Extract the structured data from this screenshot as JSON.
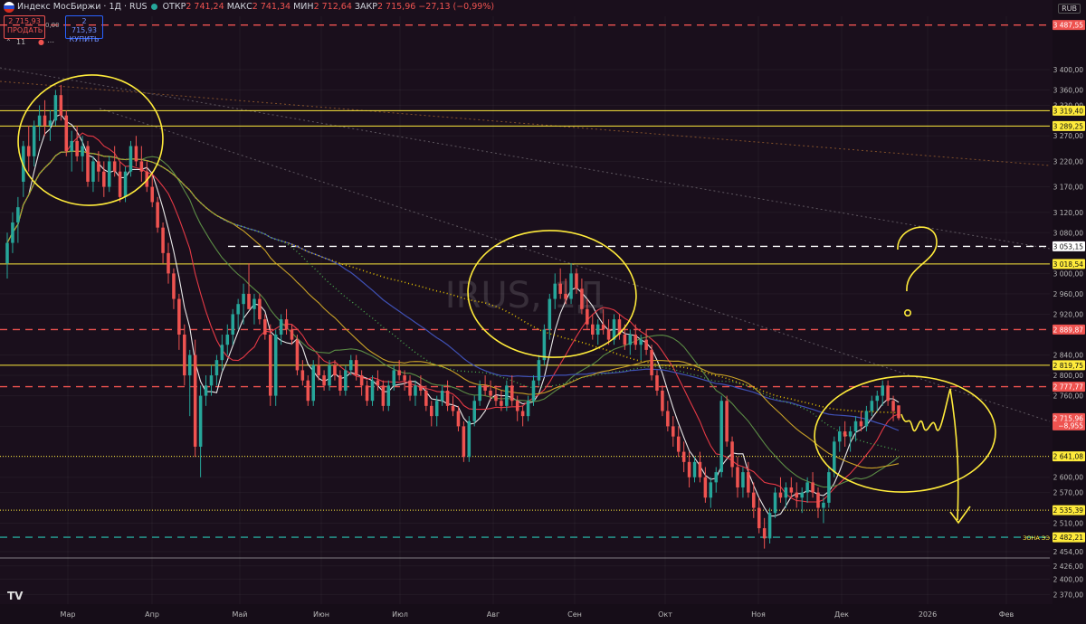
{
  "header": {
    "title": "Индекс МосБиржи · 1Д · RUS",
    "open_label": "ОТКР",
    "open": "2 741,24",
    "high_label": "МАКС",
    "high": "2 741,34",
    "low_label": "МИН",
    "low": "2 712,64",
    "close_label": "ЗАКР",
    "close": "2 715,96",
    "change": "−27,13 (−0,99%)",
    "currency": "RUB"
  },
  "trade": {
    "sell_price": "2 715,93",
    "sell_label": "ПРОДАТЬ",
    "spread": "0,00",
    "buy_price": "2 715,93",
    "buy_label": "КУПИТЬ",
    "indicators_count": "11"
  },
  "watermark": "IRUS, 1Д",
  "colors": {
    "bull": "#26a69a",
    "bear": "#ef5350",
    "drawing": "#ffeb3b",
    "ma_white": "#e8e8e8",
    "ma_red": "#e53945",
    "ma_green": "#5b8c45",
    "ma_blue": "#3f51b5",
    "ma_yellow": "#c9a227",
    "ma_yellow_dotted": "#e5c100",
    "ma_green_dotted": "#4caf50"
  },
  "chart_data": {
    "type": "candlestick",
    "title": "Индекс МосБиржи · 1Д · RUS",
    "yaxis": {
      "ticks": [
        3400,
        3360,
        3330,
        3270,
        3220,
        3170,
        3120,
        3080,
        3000,
        2960,
        2920,
        2840,
        2800,
        2760,
        2700,
        2640,
        2600,
        2570,
        2510,
        2454,
        2426,
        2400,
        2370
      ],
      "tick_labels": [
        "3 400,00",
        "3 360,00",
        "3 330,00",
        "3 270,00",
        "3 220,00",
        "3 170,00",
        "3 120,00",
        "3 080,00",
        "3 000,00",
        "2 960,00",
        "2 920,00",
        "2 840,00",
        "2 800,00",
        "2 760,00",
        "2 700,00",
        "2 640,00",
        "2 600,00",
        "2 570,00",
        "2 510,00",
        "2 454,00",
        "2 426,00",
        "2 400,00",
        "2 370,00"
      ]
    },
    "xaxis_labels": [
      "Мар",
      "Апр",
      "Май",
      "Июн",
      "Июл",
      "Авг",
      "Сен",
      "Окт",
      "Ноя",
      "Дек",
      "2026",
      "Фев"
    ],
    "price_levels": [
      {
        "value": 3487.55,
        "label": "3 487,55",
        "style": "dash",
        "color": "#ef5350"
      },
      {
        "value": 3319.4,
        "label": "3 319,40",
        "style": "solid",
        "color": "#ffeb3b"
      },
      {
        "value": 3289.25,
        "label": "3 289,25",
        "style": "solid",
        "color": "#ffeb3b"
      },
      {
        "value": 3053.15,
        "label": "3 053,15",
        "style": "dash",
        "color": "#ffffff"
      },
      {
        "value": 3018.54,
        "label": "3 018,54",
        "style": "solid",
        "color": "#ffeb3b"
      },
      {
        "value": 2889.87,
        "label": "2 889,87",
        "style": "dash",
        "color": "#ef5350"
      },
      {
        "value": 2819.75,
        "label": "2 819,75",
        "style": "solid",
        "color": "#ffeb3b"
      },
      {
        "value": 2777.77,
        "label": "2 777,77",
        "style": "dash",
        "color": "#ef5350"
      },
      {
        "value": 2641.08,
        "label": "2 641,08",
        "style": "dot",
        "color": "#ffeb3b"
      },
      {
        "value": 2535.39,
        "label": "2 535,39",
        "style": "dot",
        "color": "#ffeb3b"
      },
      {
        "value": 2482.21,
        "label": "2 482,21",
        "style": "dash",
        "color": "#26a69a"
      }
    ],
    "last_price": {
      "value": 2715.96,
      "label": "2 715,96",
      "change_label": "−8,955"
    },
    "zone_label": "ЗОНА ЭЭ",
    "candles": [
      [
        3020,
        3080,
        2990,
        3060
      ],
      [
        3060,
        3120,
        3040,
        3100
      ],
      [
        3100,
        3150,
        3060,
        3130
      ],
      [
        3180,
        3260,
        3150,
        3250
      ],
      [
        3250,
        3290,
        3200,
        3230
      ],
      [
        3230,
        3300,
        3210,
        3290
      ],
      [
        3290,
        3330,
        3260,
        3310
      ],
      [
        3310,
        3340,
        3270,
        3290
      ],
      [
        3290,
        3320,
        3260,
        3300
      ],
      [
        3300,
        3360,
        3290,
        3350
      ],
      [
        3350,
        3370,
        3300,
        3310
      ],
      [
        3310,
        3320,
        3230,
        3240
      ],
      [
        3240,
        3280,
        3200,
        3260
      ],
      [
        3260,
        3290,
        3220,
        3230
      ],
      [
        3230,
        3270,
        3200,
        3250
      ],
      [
        3250,
        3260,
        3170,
        3180
      ],
      [
        3180,
        3230,
        3160,
        3220
      ],
      [
        3220,
        3240,
        3180,
        3200
      ],
      [
        3200,
        3220,
        3150,
        3170
      ],
      [
        3170,
        3230,
        3160,
        3220
      ],
      [
        3220,
        3250,
        3190,
        3200
      ],
      [
        3200,
        3220,
        3140,
        3150
      ],
      [
        3150,
        3210,
        3140,
        3200
      ],
      [
        3200,
        3260,
        3190,
        3250
      ],
      [
        3250,
        3270,
        3210,
        3220
      ],
      [
        3220,
        3250,
        3180,
        3200
      ],
      [
        3200,
        3220,
        3160,
        3170
      ],
      [
        3170,
        3200,
        3130,
        3140
      ],
      [
        3140,
        3150,
        3080,
        3090
      ],
      [
        3090,
        3100,
        3020,
        3040
      ],
      [
        3040,
        3060,
        2980,
        3000
      ],
      [
        3000,
        3010,
        2930,
        2950
      ],
      [
        2950,
        2960,
        2850,
        2880
      ],
      [
        2880,
        2900,
        2780,
        2800
      ],
      [
        2800,
        2850,
        2720,
        2840
      ],
      [
        2840,
        2870,
        2640,
        2660
      ],
      [
        2660,
        2780,
        2600,
        2760
      ],
      [
        2760,
        2800,
        2740,
        2780
      ],
      [
        2780,
        2820,
        2760,
        2800
      ],
      [
        2800,
        2840,
        2780,
        2830
      ],
      [
        2830,
        2880,
        2810,
        2860
      ],
      [
        2860,
        2900,
        2840,
        2880
      ],
      [
        2880,
        2930,
        2860,
        2920
      ],
      [
        2920,
        2950,
        2890,
        2940
      ],
      [
        2940,
        2980,
        2900,
        2960
      ],
      [
        2960,
        3020,
        2930,
        2930
      ],
      [
        2930,
        2960,
        2900,
        2950
      ],
      [
        2950,
        2960,
        2900,
        2910
      ],
      [
        2910,
        2920,
        2870,
        2880
      ],
      [
        2880,
        2900,
        2740,
        2760
      ],
      [
        2760,
        2890,
        2740,
        2880
      ],
      [
        2880,
        2920,
        2860,
        2910
      ],
      [
        2910,
        2930,
        2880,
        2890
      ],
      [
        2890,
        2900,
        2860,
        2870
      ],
      [
        2870,
        2880,
        2800,
        2810
      ],
      [
        2810,
        2830,
        2780,
        2790
      ],
      [
        2790,
        2800,
        2740,
        2750
      ],
      [
        2750,
        2830,
        2740,
        2820
      ],
      [
        2820,
        2840,
        2790,
        2800
      ],
      [
        2800,
        2810,
        2770,
        2780
      ],
      [
        2780,
        2830,
        2770,
        2820
      ],
      [
        2820,
        2830,
        2790,
        2800
      ],
      [
        2800,
        2810,
        2760,
        2770
      ],
      [
        2770,
        2820,
        2760,
        2810
      ],
      [
        2810,
        2840,
        2800,
        2830
      ],
      [
        2830,
        2840,
        2790,
        2800
      ],
      [
        2800,
        2810,
        2760,
        2780
      ],
      [
        2780,
        2790,
        2740,
        2750
      ],
      [
        2750,
        2800,
        2740,
        2790
      ],
      [
        2790,
        2810,
        2770,
        2780
      ],
      [
        2780,
        2790,
        2730,
        2740
      ],
      [
        2740,
        2790,
        2730,
        2780
      ],
      [
        2780,
        2820,
        2770,
        2810
      ],
      [
        2810,
        2830,
        2790,
        2800
      ],
      [
        2800,
        2810,
        2770,
        2790
      ],
      [
        2790,
        2800,
        2750,
        2760
      ],
      [
        2760,
        2790,
        2740,
        2780
      ],
      [
        2780,
        2800,
        2760,
        2770
      ],
      [
        2770,
        2780,
        2730,
        2740
      ],
      [
        2740,
        2750,
        2700,
        2720
      ],
      [
        2720,
        2760,
        2700,
        2750
      ],
      [
        2750,
        2780,
        2740,
        2770
      ],
      [
        2770,
        2790,
        2730,
        2740
      ],
      [
        2740,
        2760,
        2720,
        2730
      ],
      [
        2730,
        2740,
        2690,
        2700
      ],
      [
        2700,
        2710,
        2630,
        2640
      ],
      [
        2640,
        2720,
        2630,
        2710
      ],
      [
        2710,
        2760,
        2700,
        2750
      ],
      [
        2750,
        2790,
        2740,
        2780
      ],
      [
        2780,
        2800,
        2760,
        2770
      ],
      [
        2770,
        2790,
        2750,
        2760
      ],
      [
        2760,
        2780,
        2740,
        2750
      ],
      [
        2750,
        2770,
        2730,
        2740
      ],
      [
        2740,
        2790,
        2730,
        2780
      ],
      [
        2780,
        2800,
        2740,
        2750
      ],
      [
        2750,
        2760,
        2710,
        2730
      ],
      [
        2730,
        2740,
        2700,
        2720
      ],
      [
        2720,
        2760,
        2710,
        2750
      ],
      [
        2750,
        2800,
        2740,
        2790
      ],
      [
        2790,
        2840,
        2780,
        2830
      ],
      [
        2830,
        2900,
        2820,
        2890
      ],
      [
        2890,
        2960,
        2870,
        2950
      ],
      [
        2950,
        3000,
        2930,
        2980
      ],
      [
        2980,
        3010,
        2950,
        2960
      ],
      [
        2960,
        2990,
        2940,
        2950
      ],
      [
        2950,
        3020,
        2940,
        3000
      ],
      [
        3000,
        3010,
        2960,
        2970
      ],
      [
        2970,
        2990,
        2920,
        2930
      ],
      [
        2930,
        2950,
        2890,
        2900
      ],
      [
        2900,
        2920,
        2870,
        2880
      ],
      [
        2880,
        2910,
        2860,
        2900
      ],
      [
        2900,
        2930,
        2880,
        2890
      ],
      [
        2890,
        2910,
        2860,
        2870
      ],
      [
        2870,
        2920,
        2860,
        2910
      ],
      [
        2910,
        2920,
        2870,
        2880
      ],
      [
        2880,
        2900,
        2850,
        2860
      ],
      [
        2860,
        2890,
        2840,
        2880
      ],
      [
        2880,
        2900,
        2850,
        2860
      ],
      [
        2860,
        2880,
        2830,
        2870
      ],
      [
        2870,
        2890,
        2840,
        2850
      ],
      [
        2850,
        2860,
        2790,
        2800
      ],
      [
        2800,
        2810,
        2760,
        2770
      ],
      [
        2770,
        2780,
        2720,
        2730
      ],
      [
        2730,
        2750,
        2690,
        2700
      ],
      [
        2700,
        2720,
        2660,
        2680
      ],
      [
        2680,
        2700,
        2640,
        2650
      ],
      [
        2650,
        2670,
        2610,
        2630
      ],
      [
        2630,
        2650,
        2580,
        2600
      ],
      [
        2600,
        2640,
        2590,
        2630
      ],
      [
        2630,
        2650,
        2590,
        2600
      ],
      [
        2600,
        2620,
        2550,
        2560
      ],
      [
        2560,
        2600,
        2540,
        2590
      ],
      [
        2590,
        2620,
        2570,
        2610
      ],
      [
        2610,
        2760,
        2600,
        2750
      ],
      [
        2750,
        2760,
        2660,
        2670
      ],
      [
        2670,
        2680,
        2600,
        2620
      ],
      [
        2620,
        2640,
        2560,
        2580
      ],
      [
        2580,
        2620,
        2560,
        2610
      ],
      [
        2610,
        2630,
        2560,
        2570
      ],
      [
        2570,
        2590,
        2520,
        2540
      ],
      [
        2540,
        2560,
        2490,
        2500
      ],
      [
        2500,
        2520,
        2460,
        2480
      ],
      [
        2480,
        2540,
        2470,
        2530
      ],
      [
        2530,
        2580,
        2520,
        2570
      ],
      [
        2570,
        2600,
        2550,
        2560
      ],
      [
        2560,
        2590,
        2540,
        2580
      ],
      [
        2580,
        2600,
        2560,
        2570
      ],
      [
        2570,
        2590,
        2540,
        2560
      ],
      [
        2560,
        2580,
        2530,
        2570
      ],
      [
        2570,
        2600,
        2550,
        2590
      ],
      [
        2590,
        2610,
        2560,
        2570
      ],
      [
        2570,
        2580,
        2520,
        2540
      ],
      [
        2540,
        2560,
        2510,
        2550
      ],
      [
        2550,
        2620,
        2540,
        2610
      ],
      [
        2610,
        2680,
        2600,
        2670
      ],
      [
        2670,
        2700,
        2650,
        2690
      ],
      [
        2690,
        2710,
        2660,
        2680
      ],
      [
        2680,
        2700,
        2650,
        2690
      ],
      [
        2690,
        2720,
        2670,
        2710
      ],
      [
        2710,
        2730,
        2690,
        2700
      ],
      [
        2700,
        2740,
        2690,
        2730
      ],
      [
        2730,
        2760,
        2720,
        2750
      ],
      [
        2750,
        2770,
        2730,
        2760
      ],
      [
        2760,
        2790,
        2740,
        2780
      ],
      [
        2780,
        2790,
        2740,
        2750
      ],
      [
        2750,
        2760,
        2710,
        2730
      ],
      [
        2741,
        2741,
        2712,
        2716
      ]
    ],
    "moving_averages": [
      {
        "id": "white",
        "color": "#e8e8e8",
        "width": 1.1,
        "dash": "",
        "period": 5
      },
      {
        "id": "red",
        "color": "#e53945",
        "width": 1.1,
        "dash": "",
        "period": 12
      },
      {
        "id": "green",
        "color": "#5b8c45",
        "width": 1.1,
        "dash": "",
        "period": 26
      },
      {
        "id": "blue",
        "color": "#3f51b5",
        "width": 1.2,
        "dash": "",
        "period": 60
      },
      {
        "id": "yellow",
        "color": "#c9a227",
        "width": 1.1,
        "dash": "",
        "period": 40
      },
      {
        "id": "yellow-dotted",
        "color": "#e5c100",
        "width": 1.6,
        "dash": "1,3",
        "period": 90
      },
      {
        "id": "green-dotted",
        "color": "#4caf50",
        "width": 1.3,
        "dash": "1,3",
        "period": 50
      }
    ]
  }
}
